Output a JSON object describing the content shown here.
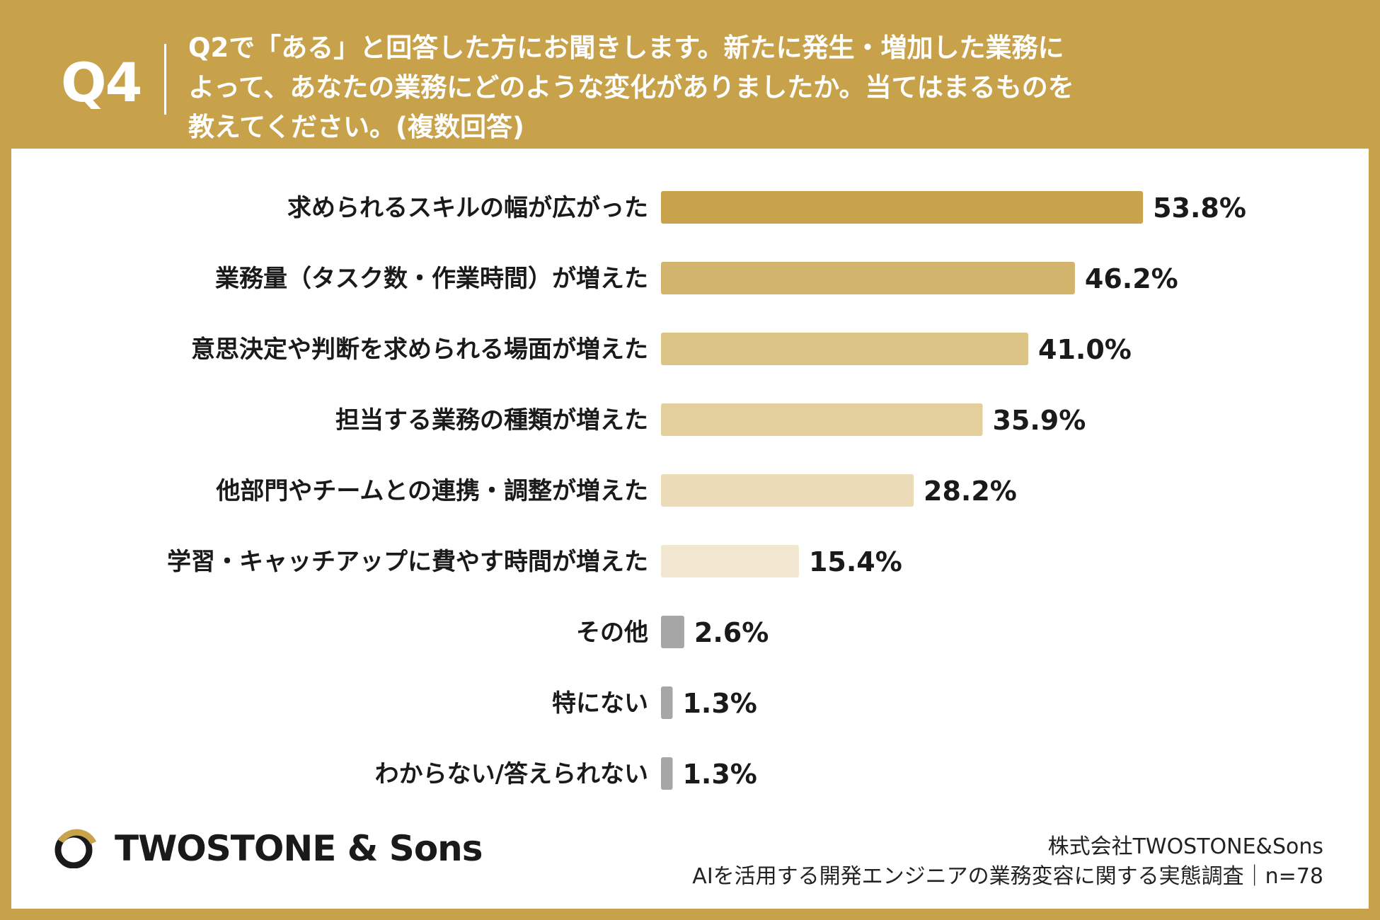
{
  "header": {
    "q_label": "Q4",
    "question": "Q2で「ある」と回答した方にお聞きします。新たに発生・増加した業務に\nよって、あなたの業務にどのような変化がありましたか。当てはまるものを\n教えてください。(複数回答)"
  },
  "chart_data": {
    "type": "bar",
    "orientation": "horizontal",
    "categories": [
      "求められるスキルの幅が広がった",
      "業務量（タスク数・作業時間）が増えた",
      "意思決定や判断を求められる場面が増えた",
      "担当する業務の種類が増えた",
      "他部門やチームとの連携・調整が増えた",
      "学習・キャッチアップに費やす時間が増えた",
      "その他",
      "特にない",
      "わからない/答えられない"
    ],
    "values": [
      53.8,
      46.2,
      41.0,
      35.9,
      28.2,
      15.4,
      2.6,
      1.3,
      1.3
    ],
    "value_labels": [
      "53.8%",
      "46.2%",
      "41.0%",
      "35.9%",
      "28.2%",
      "15.4%",
      "2.6%",
      "1.3%",
      "1.3%"
    ],
    "colors": [
      "#c9a24c",
      "#d3b46d",
      "#dcc386",
      "#e3cf9c",
      "#ebdcb7",
      "#f2e8d2",
      "#a6a6a6",
      "#a6a6a6",
      "#a6a6a6"
    ],
    "grid": false,
    "legend": "none"
  },
  "footer": {
    "logo_text": "TWOSTONE & Sons",
    "company": "株式会社TWOSTONE&Sons",
    "survey": "AIを活用する開発エンジニアの業務変容に関する実態調査｜n=78"
  }
}
